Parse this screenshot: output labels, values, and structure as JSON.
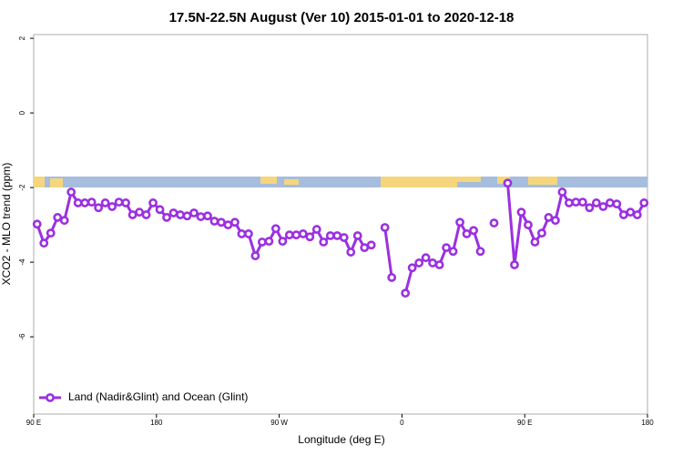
{
  "chart_data": {
    "type": "line",
    "title": "17.5N-22.5N August (Ver 10)   2015-01-01 to 2020-12-18",
    "xlabel": "Longitude (deg E)",
    "ylabel": "XCO2 - MLO trend (ppm)",
    "x": [
      92.5,
      97.5,
      102.5,
      107.5,
      112.5,
      117.5,
      122.5,
      127.5,
      132.5,
      137.5,
      142.5,
      147.5,
      152.5,
      157.5,
      162.5,
      167.5,
      172.5,
      177.5,
      182.5,
      187.5,
      192.5,
      197.5,
      202.5,
      207.5,
      212.5,
      217.5,
      222.5,
      227.5,
      232.5,
      237.5,
      242.5,
      247.5,
      252.5,
      257.5,
      262.5,
      267.5,
      272.5,
      277.5,
      282.5,
      287.5,
      292.5,
      297.5,
      302.5,
      307.5,
      312.5,
      317.5,
      322.5,
      327.5,
      332.5,
      337.5,
      342.5,
      347.5,
      352.5,
      357.5,
      362.5,
      367.5,
      372.5,
      377.5,
      382.5,
      387.5,
      392.5,
      397.5,
      402.5,
      407.5,
      412.5,
      417.5,
      422.5,
      427.5,
      432.5,
      437.5,
      442.5,
      447.5,
      452.5,
      457.5,
      462.5,
      467.5,
      472.5,
      477.5,
      482.5,
      487.5,
      492.5,
      497.5,
      502.5,
      507.5,
      512.5,
      517.5,
      522.5,
      527.5,
      532.5,
      537.5
    ],
    "series": [
      {
        "name": "Land (Nadir&Glint) and Ocean (Glint)",
        "color": "#9b30e0",
        "values": [
          -2.98,
          -3.49,
          -3.22,
          -2.8,
          -2.88,
          -2.12,
          -2.41,
          -2.41,
          -2.39,
          -2.54,
          -2.41,
          -2.51,
          -2.39,
          -2.41,
          -2.73,
          -2.66,
          -2.73,
          -2.41,
          -2.59,
          -2.8,
          -2.68,
          -2.73,
          -2.76,
          -2.68,
          -2.78,
          -2.76,
          -2.9,
          -2.93,
          -3.0,
          -2.93,
          -3.24,
          -3.24,
          -3.83,
          -3.46,
          -3.44,
          -3.1,
          -3.44,
          -3.27,
          -3.27,
          -3.24,
          -3.32,
          -3.12,
          -3.46,
          -3.29,
          -3.29,
          -3.34,
          -3.73,
          -3.29,
          -3.61,
          -3.54,
          null,
          -3.07,
          -4.41,
          null,
          -4.83,
          -4.15,
          -4.02,
          -3.88,
          -4.02,
          -4.07,
          -3.61,
          -3.71,
          -2.93,
          -3.24,
          -3.15,
          -3.71,
          null,
          -2.95,
          null,
          -1.88,
          -4.07,
          -2.66,
          -3.0,
          -3.46,
          -3.22,
          -2.8,
          -2.88,
          -2.12,
          -2.41,
          -2.39,
          -2.39,
          -2.54,
          -2.41,
          -2.51,
          -2.41,
          -2.44,
          -2.73,
          -2.66,
          -2.73,
          -2.41
        ]
      }
    ],
    "xlim": [
      90,
      540
    ],
    "xticks": [
      {
        "value": 90,
        "label": "90 E"
      },
      180,
      {
        "value": 270,
        "label": "90 W"
      },
      {
        "value": 360,
        "label": "0"
      },
      {
        "value": 450,
        "label": "90 E"
      },
      {
        "value": 540,
        "label": "180"
      }
    ],
    "ylim": [
      -8.07,
      2.1
    ],
    "yticks": [
      2,
      0,
      -2,
      -4,
      -6
    ],
    "legend": "bottom-left"
  }
}
